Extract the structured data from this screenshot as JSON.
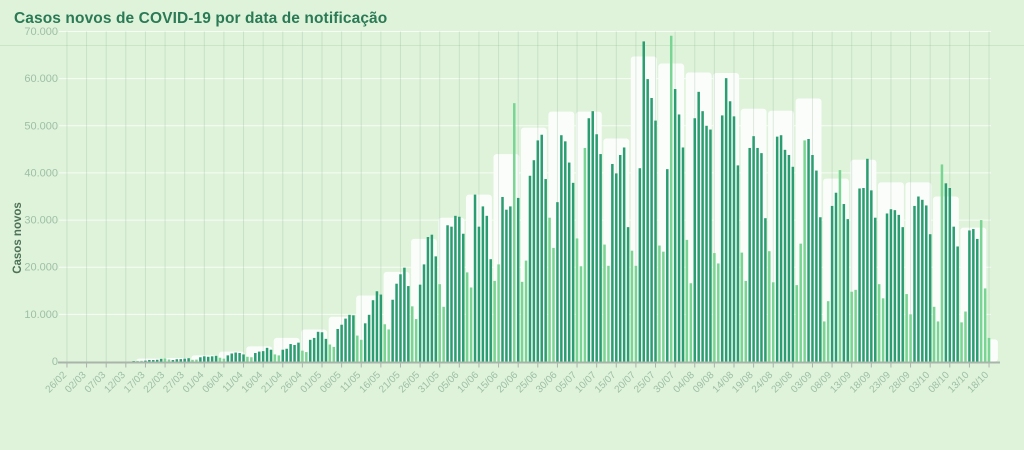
{
  "page": {
    "title": "Casos novos de COVID-19 por data de notificação"
  },
  "chart_data": {
    "type": "bar",
    "title": "Casos novos de COVID-19 por data de notificação",
    "xlabel": "",
    "ylabel": "Casos novos",
    "ylim": [
      0,
      70000
    ],
    "grid": true,
    "legend": "none",
    "x_start_date": "26/02",
    "x_end_date": "18/10",
    "y_ticks": [
      "0",
      "10.000",
      "20.000",
      "30.000",
      "40.000",
      "50.000",
      "60.000",
      "70.000"
    ],
    "x_ticks": [
      "26/02",
      "02/03",
      "07/03",
      "12/03",
      "17/03",
      "22/03",
      "27/03",
      "01/04",
      "06/04",
      "11/04",
      "16/04",
      "21/04",
      "26/04",
      "01/05",
      "06/05",
      "11/05",
      "16/05",
      "21/05",
      "26/05",
      "31/05",
      "05/06",
      "10/06",
      "15/06",
      "20/06",
      "25/06",
      "30/06",
      "05/07",
      "10/07",
      "15/07",
      "20/07",
      "25/07",
      "30/07",
      "04/08",
      "09/08",
      "14/08",
      "19/08",
      "24/08",
      "29/08",
      "03/09",
      "08/09",
      "13/09",
      "18/09",
      "23/09",
      "28/09",
      "03/10",
      "08/10",
      "13/10",
      "18/10"
    ],
    "x_tick_step_days": 5,
    "values": [
      1,
      0,
      0,
      2,
      2,
      0,
      1,
      3,
      9,
      18,
      5,
      19,
      12,
      15,
      34,
      43,
      58,
      97,
      124,
      137,
      186,
      324,
      310,
      365,
      555,
      630,
      420,
      310,
      480,
      500,
      600,
      700,
      350,
      400,
      900,
      1100,
      1000,
      1100,
      1200,
      800,
      600,
      1300,
      1700,
      1900,
      1800,
      1500,
      1000,
      900,
      1800,
      2100,
      2200,
      2900,
      2500,
      1500,
      1300,
      2500,
      2700,
      3700,
      3500,
      4000,
      2300,
      2000,
      4600,
      5000,
      6300,
      6200,
      4800,
      3600,
      3100,
      6900,
      7800,
      9100,
      9900,
      9800,
      5500,
      4600,
      8100,
      9900,
      13000,
      14900,
      14200,
      7900,
      6800,
      13100,
      16500,
      18500,
      19900,
      16000,
      11700,
      9000,
      16300,
      20600,
      26400,
      26900,
      22300,
      16400,
      11600,
      28900,
      28600,
      30900,
      30700,
      27100,
      18900,
      15700,
      35400,
      28600,
      32900,
      30900,
      21700,
      17100,
      20600,
      34900,
      32200,
      32900,
      54800,
      34700,
      16900,
      21400,
      39400,
      42700,
      46900,
      48100,
      38700,
      30500,
      24100,
      33800,
      48000,
      46700,
      42200,
      37900,
      26100,
      20200,
      45300,
      51600,
      53100,
      48200,
      44000,
      24800,
      20300,
      41900,
      39900,
      43800,
      45400,
      28500,
      23500,
      20300,
      41000,
      67900,
      59900,
      55900,
      51100,
      24600,
      23300,
      40800,
      69100,
      57800,
      52400,
      45400,
      25800,
      16600,
      51600,
      57200,
      53100,
      50000,
      49200,
      23000,
      20800,
      52200,
      60100,
      55200,
      52000,
      41600,
      23100,
      17100,
      45300,
      47800,
      45300,
      44200,
      30400,
      23400,
      16800,
      47700,
      48000,
      44900,
      43800,
      41300,
      16200,
      25000,
      46900,
      47200,
      43800,
      40500,
      30600,
      8500,
      12800,
      33000,
      35800,
      40600,
      33400,
      30200,
      14800,
      15200,
      36700,
      36800,
      43000,
      36300,
      30500,
      16400,
      13400,
      31400,
      32300,
      32100,
      31100,
      28500,
      14300,
      10000,
      33000,
      35000,
      34300,
      33100,
      27000,
      11600,
      8500,
      41800,
      37800,
      36800,
      28600,
      24400,
      8300,
      10600,
      27800,
      28100,
      26000,
      30000,
      15500,
      5000
    ],
    "week_blocks_note": "white rounded background blocks, one per epidemiological week (first block 4 days, last 1 day), height read from chart",
    "week_tops": [
      0,
      20,
      120,
      600,
      750,
      1300,
      2100,
      3200,
      5000,
      6800,
      9500,
      14000,
      19000,
      26000,
      30500,
      35400,
      44000,
      49600,
      53000,
      53000,
      47300,
      64700,
      63200,
      61300,
      61200,
      53600,
      53200,
      55800,
      38800,
      42800,
      38000,
      38000,
      35000,
      28400,
      4700
    ],
    "light_days": [
      114,
      132,
      154,
      188,
      197,
      223,
      233,
      234
    ],
    "colors": {
      "background": "#dff3da",
      "bar_dark": "#2a9d72",
      "bar_light": "#79d593",
      "week_block": "#fbfdfb",
      "grid_horizontal": "rgba(255,255,255,0.75)",
      "grid_vertical": "rgba(140,180,150,0.28)",
      "axis_line": "#a9b4aa",
      "tick_text": "#9dbfa6",
      "title_text": "#2a7a55",
      "ylabel_text": "#4d7258",
      "divider": "#c9e7c5"
    }
  }
}
